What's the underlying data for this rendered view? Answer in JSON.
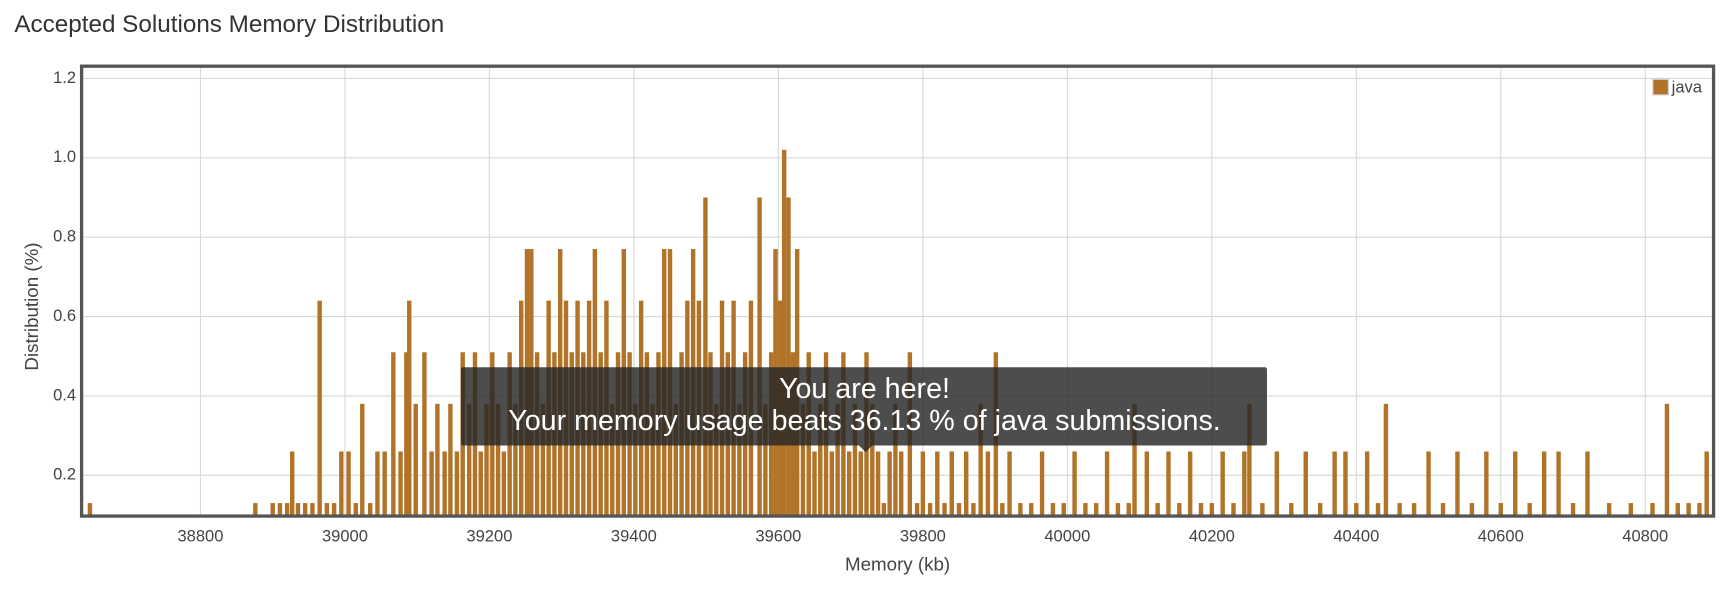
{
  "chart_data": {
    "type": "bar",
    "title": "Accepted Solutions Memory Distribution",
    "x_label": "Memory (kb)",
    "y_label": "Distribution (%)",
    "series": [
      {
        "name": "java",
        "color": "#b07328",
        "x": [
          38647,
          38876,
          38900,
          38910,
          38920,
          38927,
          38935,
          38945,
          38955,
          38965,
          38975,
          38985,
          38995,
          39005,
          39015,
          39024,
          39035,
          39045,
          39055,
          39067,
          39077,
          39085,
          39089,
          39098,
          39110,
          39120,
          39128,
          39138,
          39146,
          39155,
          39163,
          39172,
          39180,
          39188,
          39196,
          39204,
          39212,
          39220,
          39228,
          39236,
          39244,
          39252,
          39258,
          39266,
          39274,
          39282,
          39290,
          39298,
          39306,
          39314,
          39322,
          39330,
          39338,
          39346,
          39354,
          39362,
          39370,
          39378,
          39386,
          39394,
          39402,
          39410,
          39418,
          39426,
          39434,
          39442,
          39450,
          39458,
          39466,
          39474,
          39482,
          39490,
          39499,
          39506,
          39514,
          39522,
          39530,
          39538,
          39546,
          39554,
          39562,
          39574,
          39582,
          39590,
          39596,
          39602,
          39608,
          39614,
          39620,
          39626,
          39634,
          39642,
          39650,
          39658,
          39666,
          39674,
          39682,
          39690,
          39698,
          39706,
          39714,
          39722,
          39730,
          39738,
          39746,
          39754,
          39762,
          39770,
          39782,
          39792,
          39800,
          39810,
          39820,
          39830,
          39840,
          39850,
          39860,
          39870,
          39880,
          39890,
          39901,
          39910,
          39920,
          39935,
          39950,
          39965,
          39980,
          39995,
          40010,
          40025,
          40040,
          40055,
          40070,
          40085,
          40093,
          40110,
          40125,
          40140,
          40155,
          40170,
          40185,
          40200,
          40215,
          40230,
          40245,
          40252,
          40270,
          40290,
          40310,
          40330,
          40350,
          40370,
          40385,
          40400,
          40415,
          40430,
          40441,
          40460,
          40480,
          40500,
          40520,
          40540,
          40560,
          40580,
          40600,
          40620,
          40640,
          40660,
          40680,
          40700,
          40720,
          40750,
          40780,
          40810,
          40830,
          40845,
          40860,
          40875,
          40885
        ],
        "values": [
          0.13,
          0.13,
          0.13,
          0.13,
          0.13,
          0.26,
          0.13,
          0.13,
          0.13,
          0.64,
          0.13,
          0.13,
          0.26,
          0.26,
          0.13,
          0.38,
          0.13,
          0.26,
          0.26,
          0.51,
          0.26,
          0.51,
          0.64,
          0.38,
          0.51,
          0.26,
          0.38,
          0.26,
          0.38,
          0.26,
          0.51,
          0.38,
          0.51,
          0.26,
          0.38,
          0.51,
          0.38,
          0.26,
          0.51,
          0.38,
          0.64,
          0.77,
          0.77,
          0.51,
          0.38,
          0.64,
          0.51,
          0.77,
          0.64,
          0.51,
          0.64,
          0.51,
          0.64,
          0.77,
          0.51,
          0.64,
          0.38,
          0.51,
          0.77,
          0.51,
          0.38,
          0.64,
          0.51,
          0.38,
          0.51,
          0.77,
          0.77,
          0.38,
          0.51,
          0.64,
          0.77,
          0.64,
          0.9,
          0.51,
          0.38,
          0.64,
          0.51,
          0.64,
          0.38,
          0.51,
          0.64,
          0.9,
          0.38,
          0.51,
          0.77,
          0.64,
          1.02,
          0.9,
          0.51,
          0.77,
          0.38,
          0.51,
          0.26,
          0.38,
          0.51,
          0.26,
          0.38,
          0.51,
          0.26,
          0.38,
          0.26,
          0.51,
          0.38,
          0.26,
          0.13,
          0.26,
          0.38,
          0.26,
          0.51,
          0.13,
          0.26,
          0.13,
          0.26,
          0.13,
          0.26,
          0.13,
          0.26,
          0.13,
          0.38,
          0.26,
          0.51,
          0.13,
          0.26,
          0.13,
          0.13,
          0.26,
          0.13,
          0.13,
          0.26,
          0.13,
          0.13,
          0.26,
          0.13,
          0.13,
          0.38,
          0.26,
          0.13,
          0.26,
          0.13,
          0.26,
          0.13,
          0.13,
          0.26,
          0.13,
          0.26,
          0.38,
          0.13,
          0.26,
          0.13,
          0.26,
          0.13,
          0.26,
          0.26,
          0.13,
          0.26,
          0.13,
          0.38,
          0.13,
          0.13,
          0.26,
          0.13,
          0.26,
          0.13,
          0.26,
          0.13,
          0.26,
          0.13,
          0.26,
          0.26,
          0.13,
          0.26,
          0.13,
          0.13,
          0.13,
          0.38,
          0.13,
          0.13,
          0.13,
          0.26
        ]
      }
    ],
    "xlim": [
      38637,
      40893
    ],
    "xticks": [
      38800,
      39000,
      39200,
      39400,
      39600,
      39800,
      40000,
      40200,
      40400,
      40600,
      40800
    ],
    "ylim": [
      0.1,
      1.228
    ],
    "yticks": [
      0.2,
      0.4,
      0.6,
      0.8,
      {
        "value": 1,
        "label": "1.0"
      },
      1.2
    ],
    "grid": true,
    "legend": "top-right",
    "annotation": [
      "You are here!",
      "Your memory usage beats 36.13 % of java submissions."
    ]
  }
}
